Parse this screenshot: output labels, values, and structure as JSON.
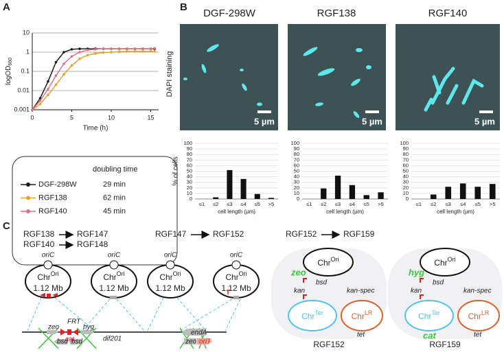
{
  "chart_data": [
    {
      "type": "line",
      "ylabel": "logOD",
      "ylabel_subscript": "660",
      "xlabel": "Time (h)",
      "log_y": true,
      "grid": true,
      "x": [
        0,
        1,
        2,
        3,
        4,
        5,
        6,
        7,
        8,
        9,
        10,
        11,
        12,
        13,
        14,
        15,
        15.5
      ],
      "xlim": [
        0,
        16
      ],
      "xticks": [
        0,
        5,
        10,
        15
      ],
      "ylim": [
        0.001,
        10
      ],
      "yticks": [
        0.001,
        0.01,
        0.1,
        1,
        10
      ],
      "series": [
        {
          "name": "DGF-298W",
          "color": "#1a1a1a",
          "values": [
            0.001,
            0.004,
            0.03,
            0.3,
            1.0,
            1.4,
            1.5,
            1.5,
            1.5,
            1.5,
            1.5,
            1.5,
            1.5,
            1.5,
            1.5,
            1.5,
            1.5
          ]
        },
        {
          "name": "RGF138",
          "color": "#e3a22f",
          "values": [
            0.001,
            0.002,
            0.006,
            0.02,
            0.07,
            0.2,
            0.45,
            0.7,
            0.85,
            0.95,
            1.0,
            1.05,
            1.1,
            1.1,
            1.1,
            1.1,
            1.1
          ]
        },
        {
          "name": "RGF140",
          "color": "#d9728a",
          "values": [
            0.001,
            0.003,
            0.012,
            0.06,
            0.25,
            0.6,
            1.0,
            1.3,
            1.4,
            1.5,
            1.5,
            1.5,
            1.5,
            1.5,
            1.5,
            1.5,
            1.6
          ]
        }
      ]
    },
    {
      "type": "bar",
      "ylabel": "% of cells",
      "xlabel": "cell length (µm)",
      "color": "#111111",
      "grid": true,
      "categories": [
        "≤1",
        "≤2",
        "≤3",
        "≤4",
        "≤5",
        ">5"
      ],
      "values": [
        0,
        3,
        52,
        36,
        9,
        2
      ],
      "ylim": [
        0,
        100
      ],
      "yticks": [
        0,
        10,
        20,
        30,
        40,
        50,
        60,
        70,
        80,
        90,
        100
      ]
    },
    {
      "type": "bar",
      "xlabel": "cell length (µm)",
      "color": "#111111",
      "grid": true,
      "categories": [
        "≤1",
        "≤2",
        "≤3",
        "≤4",
        "≤5",
        ">5"
      ],
      "values": [
        0,
        19,
        42,
        25,
        7,
        12
      ],
      "ylim": [
        0,
        100
      ],
      "yticks": [
        0,
        10,
        20,
        30,
        40,
        50,
        60,
        70,
        80,
        90,
        100
      ]
    },
    {
      "type": "bar",
      "xlabel": "cell length (µm)",
      "color": "#111111",
      "grid": true,
      "categories": [
        "≤1",
        "≤2",
        "≤3",
        "≤4",
        "≤5",
        ">5"
      ],
      "values": [
        0,
        8,
        22,
        28,
        22,
        27
      ],
      "ylim": [
        0,
        100
      ],
      "yticks": [
        0,
        10,
        20,
        30,
        40,
        50,
        60,
        70,
        80,
        90,
        100
      ]
    }
  ],
  "panel_labels": [
    "A",
    "B",
    "C"
  ],
  "legend_header": "doubling time",
  "doubling_times": [
    "29 min",
    "62 min",
    "45 min"
  ],
  "panel_b": {
    "image_label": "DAPI staining",
    "images": [
      {
        "title": "DGF-298W",
        "scale_bar": "5 µm"
      },
      {
        "title": "RGF138",
        "scale_bar": "5 µm"
      },
      {
        "title": "RGF140",
        "scale_bar": "5 µm"
      }
    ]
  },
  "panel_c": {
    "transitions": [
      {
        "from": "RGF138",
        "to": "RGF147"
      },
      {
        "from": "RGF140",
        "to": "RGF148"
      },
      {
        "from": "RGF147",
        "to": "RGF152"
      },
      {
        "from": "RGF152",
        "to": "RGF159"
      }
    ],
    "chromosome": {
      "origin": "oriC",
      "base": "Chr",
      "ori": "Ori",
      "ter": "Ter",
      "lr": "LR",
      "size": "1.12 Mb"
    },
    "cassette_1": {
      "zeo": "zeo",
      "site": "FRT",
      "cat": "cat",
      "hyg": "hyg",
      "dif": "dif201",
      "donor": [
        "bsd",
        "bsd"
      ]
    },
    "cassette_2": {
      "gene": "endA",
      "donor": [
        "zeo",
        "oriT"
      ]
    },
    "strains": [
      {
        "name": "RGF152",
        "ori_marker": "zeo",
        "bsd": "bsd",
        "kan": "kan",
        "kan_spec": "kan-spec",
        "tet": "tet"
      },
      {
        "name": "RGF159",
        "ori_marker": "hyg",
        "bsd": "bsd",
        "kan": "kan",
        "kan_spec": "kan-spec",
        "tet": "tet",
        "ter_marker": "cat"
      }
    ]
  }
}
